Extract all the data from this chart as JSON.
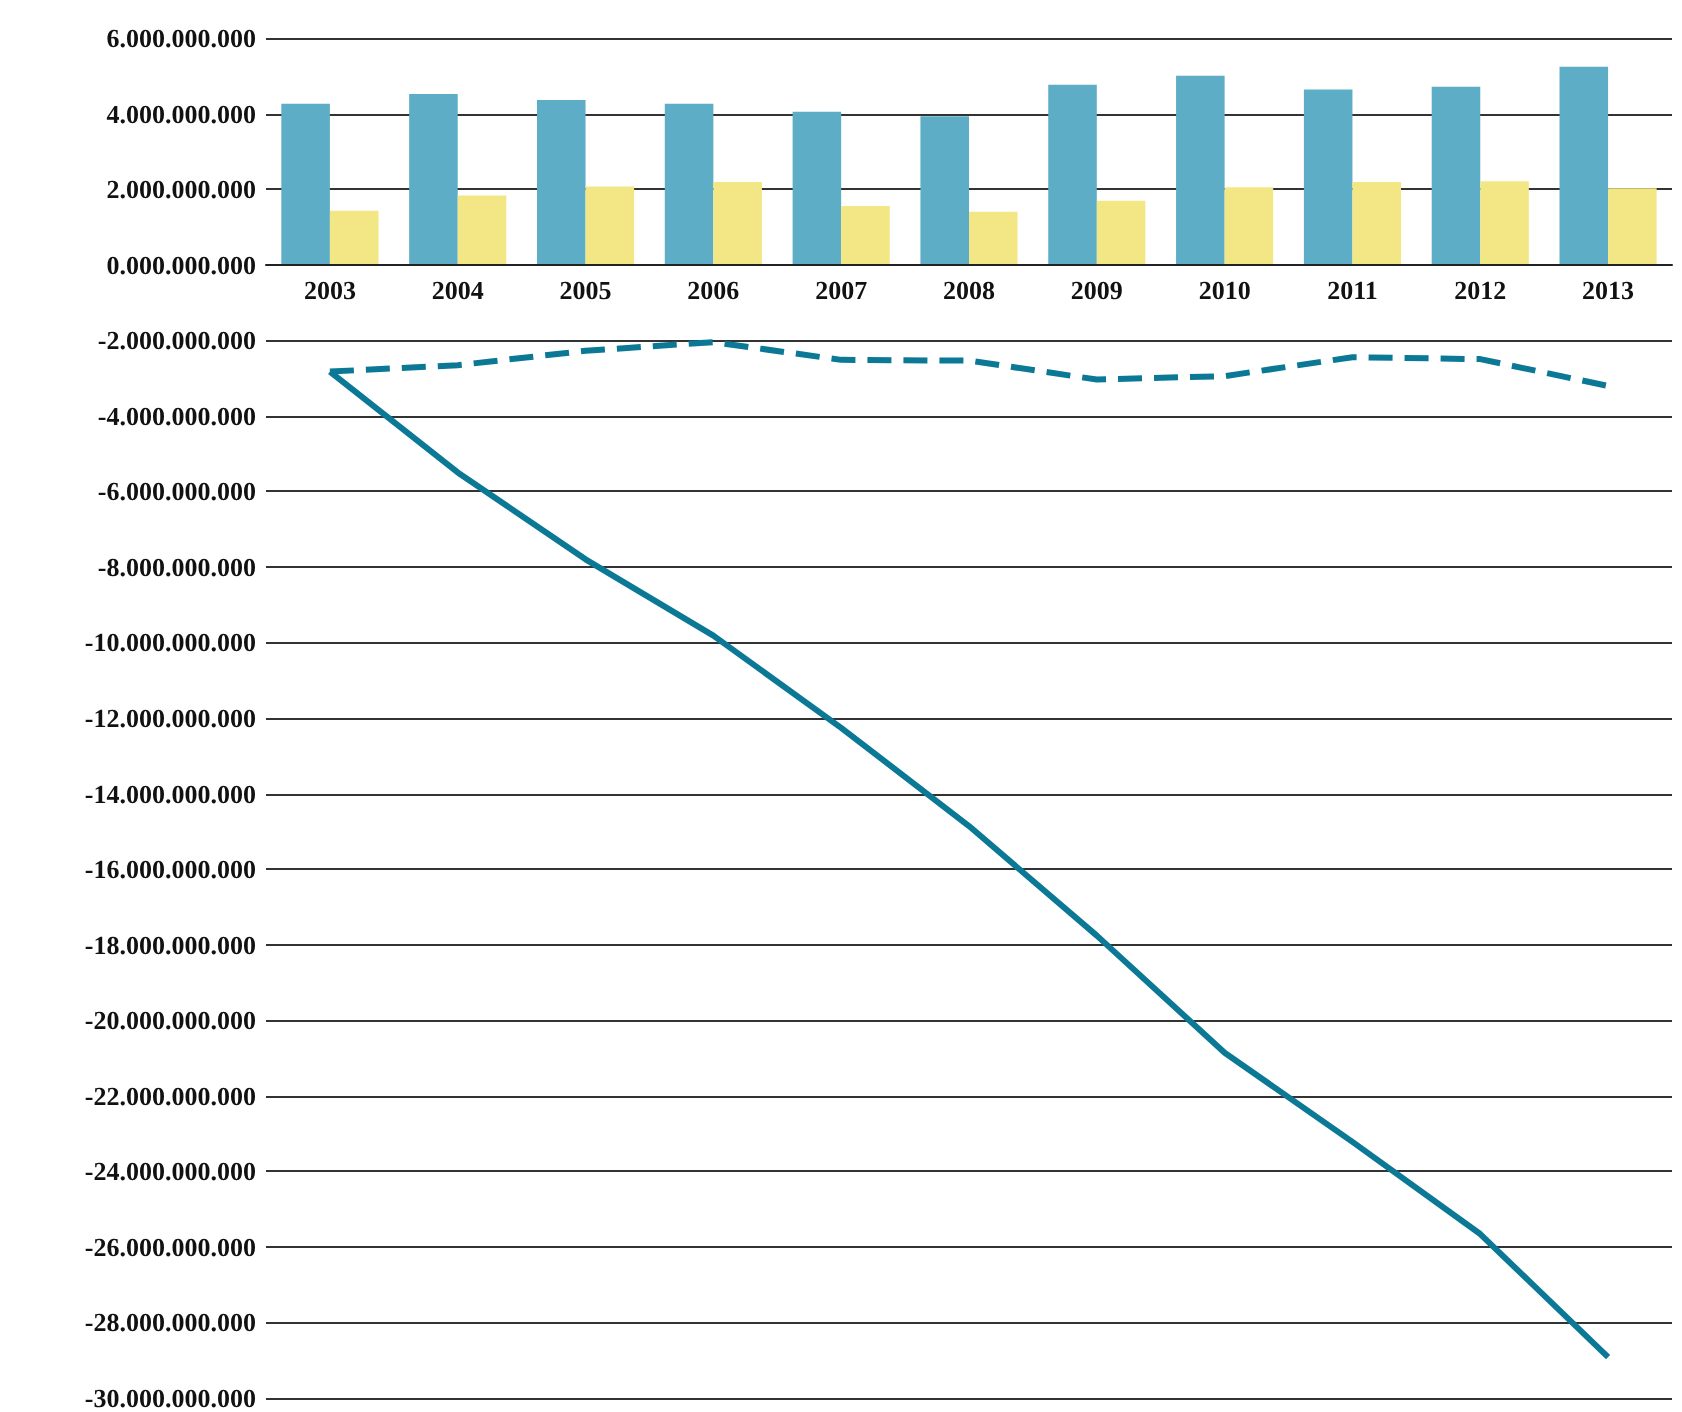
{
  "chart_data": {
    "type": "bar",
    "categories": [
      "2003",
      "2004",
      "2005",
      "2006",
      "2007",
      "2008",
      "2009",
      "2010",
      "2011",
      "2012",
      "2013"
    ],
    "series": [
      {
        "color": "#5eadc6",
        "values": [
          4260000000,
          4520000000,
          4360000000,
          4260000000,
          4050000000,
          3930000000,
          4760000000,
          5000000000,
          4640000000,
          4710000000,
          5240000000
        ]
      },
      {
        "color": "#f2e784",
        "values": [
          1430000000,
          1830000000,
          2070000000,
          2190000000,
          1550000000,
          1400000000,
          1690000000,
          2050000000,
          2190000000,
          2210000000,
          2020000000
        ]
      },
      {
        "type": "line",
        "line_style": "dashed",
        "color": "#0b7896",
        "values": [
          -2830000000,
          -2660000000,
          -2280000000,
          -2050000000,
          -2520000000,
          -2540000000,
          -3040000000,
          -2950000000,
          -2450000000,
          -2500000000,
          -3210000000
        ]
      },
      {
        "type": "line",
        "line_style": "solid",
        "color": "#0b7896",
        "values": [
          -2830000000,
          -5500000000,
          -7800000000,
          -9820000000,
          -12260000000,
          -14860000000,
          -17760000000,
          -20860000000,
          -23220000000,
          -25660000000,
          -28920000000
        ]
      }
    ],
    "ylim": [
      -30000000000,
      6000000000
    ],
    "yticks": [
      {
        "value": -30000000000,
        "label": "-30.000.000.000"
      },
      {
        "value": -28000000000,
        "label": "-28.000.000.000"
      },
      {
        "value": -26000000000,
        "label": "-26.000.000.000"
      },
      {
        "value": -24000000000,
        "label": "-24.000.000.000"
      },
      {
        "value": -22000000000,
        "label": "-22.000.000.000"
      },
      {
        "value": -20000000000,
        "label": "-20.000.000.000"
      },
      {
        "value": -18000000000,
        "label": "-18.000.000.000"
      },
      {
        "value": -16000000000,
        "label": "-16.000.000.000"
      },
      {
        "value": -14000000000,
        "label": "-14.000.000.000"
      },
      {
        "value": -12000000000,
        "label": "-12.000.000.000"
      },
      {
        "value": -10000000000,
        "label": "-10.000.000.000"
      },
      {
        "value": -8000000000,
        "label": "-8.000.000.000"
      },
      {
        "value": -6000000000,
        "label": "-6.000.000.000"
      },
      {
        "value": -4000000000,
        "label": "-4.000.000.000"
      },
      {
        "value": -2000000000,
        "label": "-2.000.000.000"
      },
      {
        "value": 0,
        "label": "0.000.000.000"
      },
      {
        "value": 2000000000,
        "label": "2.000.000.000"
      },
      {
        "value": 4000000000,
        "label": "4.000.000.000"
      },
      {
        "value": 6000000000,
        "label": "6.000.000.000"
      }
    ],
    "grid": "y",
    "marker": "none"
  }
}
